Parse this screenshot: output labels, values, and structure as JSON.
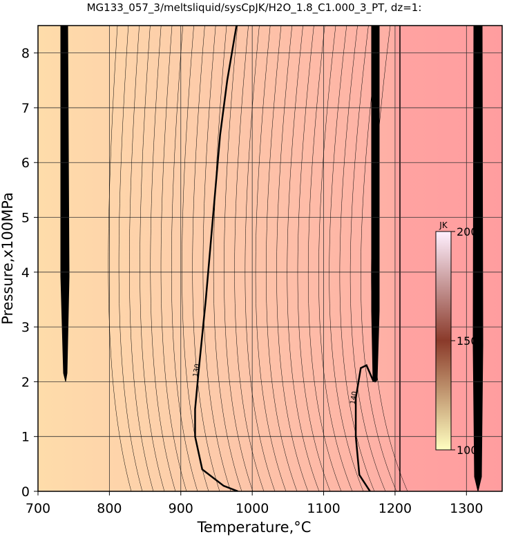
{
  "chart_data": {
    "type": "contour",
    "title": "MG133_057_3/meltsliquid/sysCpJK/H2O_1.8_C1.000_3_PT, dz=1:",
    "x_label": "Temperature,°C",
    "y_label": "Pressure,x100MPa",
    "xlim": [
      700,
      1350
    ],
    "ylim": [
      0,
      8.5
    ],
    "xticks": [
      700,
      800,
      900,
      1000,
      1100,
      1200,
      1300
    ],
    "yticks": [
      0,
      1,
      2,
      3,
      4,
      5,
      6,
      7,
      8
    ],
    "grid": true,
    "contours": [
      {
        "level": 130,
        "color": "#000000",
        "x": [
          980,
          960,
          930,
          920,
          920,
          925,
          935,
          945,
          955,
          965,
          978
        ],
        "y": [
          0,
          0.1,
          0.4,
          1.0,
          1.5,
          2.2,
          3.5,
          5,
          6.5,
          7.5,
          8.5
        ]
      },
      {
        "level": 140,
        "color": "#000000",
        "x": [
          1165,
          1150,
          1145,
          1145,
          1152,
          1160,
          1170
        ],
        "y": [
          0,
          0.3,
          1,
          1.7,
          2.25,
          2.3,
          2.0
        ]
      }
    ],
    "colorbar": {
      "label": "JK",
      "lim": [
        100,
        200
      ],
      "ticks": [
        100,
        150,
        200
      ],
      "colors": [
        "#ffffc0",
        "#8a3a2a",
        "#fff0ff"
      ]
    }
  }
}
